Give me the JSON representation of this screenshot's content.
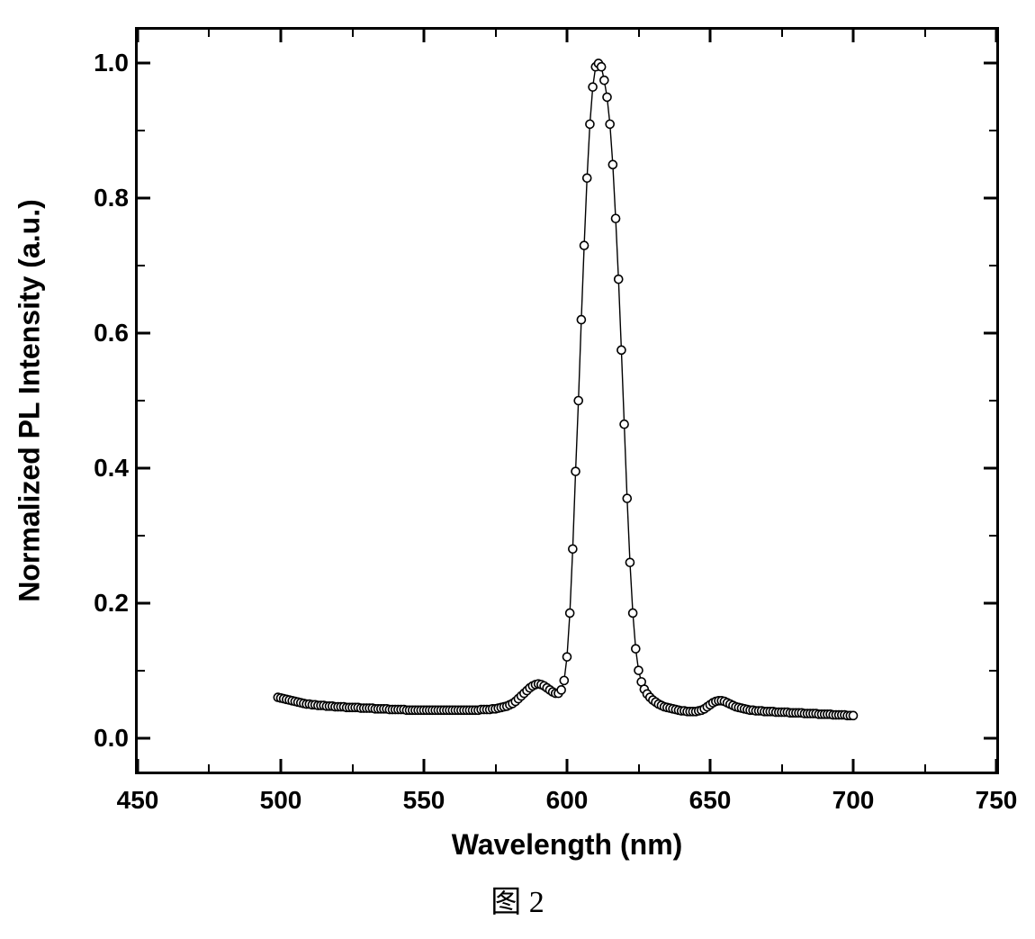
{
  "chart": {
    "type": "scatter-line",
    "xlabel": "Wavelength (nm)",
    "ylabel": "Normalized PL Intensity (a.u.)",
    "xlim": [
      450,
      750
    ],
    "ylim": [
      -0.05,
      1.05
    ],
    "xticks_major": [
      450,
      500,
      550,
      600,
      650,
      700,
      750
    ],
    "xticks_minor": [
      475,
      525,
      575,
      625,
      675,
      725
    ],
    "yticks_major": [
      0.0,
      0.2,
      0.4,
      0.6,
      0.8,
      1.0
    ],
    "yticks_minor": [
      0.1,
      0.3,
      0.5,
      0.7,
      0.9
    ],
    "xtick_labels": [
      "450",
      "500",
      "550",
      "600",
      "650",
      "700",
      "750"
    ],
    "ytick_labels": [
      "0.0",
      "0.2",
      "0.4",
      "0.6",
      "0.8",
      "1.0"
    ],
    "background_color": "#ffffff",
    "axis_color": "#000000",
    "tick_length_major": 14,
    "tick_length_minor": 8,
    "axis_line_width": 3,
    "tick_font_size": 28,
    "tick_font_weight": "bold",
    "axis_title_font_size": 32,
    "axis_title_font_weight": "bold",
    "series": {
      "marker": "circle-open",
      "marker_size": 9,
      "marker_edge_color": "#000000",
      "marker_edge_width": 1.6,
      "marker_face_color": "#ffffff",
      "line_color": "#000000",
      "line_width": 1.4,
      "x": [
        499,
        500,
        501,
        502,
        503,
        504,
        505,
        506,
        507,
        508,
        509,
        510,
        511,
        512,
        513,
        514,
        515,
        516,
        517,
        518,
        519,
        520,
        521,
        522,
        523,
        524,
        525,
        526,
        527,
        528,
        529,
        530,
        531,
        532,
        533,
        534,
        535,
        536,
        537,
        538,
        539,
        540,
        541,
        542,
        543,
        544,
        545,
        546,
        547,
        548,
        549,
        550,
        551,
        552,
        553,
        554,
        555,
        556,
        557,
        558,
        559,
        560,
        561,
        562,
        563,
        564,
        565,
        566,
        567,
        568,
        569,
        570,
        571,
        572,
        573,
        574,
        575,
        576,
        577,
        578,
        579,
        580,
        581,
        582,
        583,
        584,
        585,
        586,
        587,
        588,
        589,
        590,
        591,
        592,
        593,
        594,
        595,
        596,
        597,
        598,
        599,
        600,
        601,
        602,
        603,
        604,
        605,
        606,
        607,
        608,
        609,
        610,
        611,
        612,
        613,
        614,
        615,
        616,
        617,
        618,
        619,
        620,
        621,
        622,
        623,
        624,
        625,
        626,
        627,
        628,
        629,
        630,
        631,
        632,
        633,
        634,
        635,
        636,
        637,
        638,
        639,
        640,
        641,
        642,
        643,
        644,
        645,
        646,
        647,
        648,
        649,
        650,
        651,
        652,
        653,
        654,
        655,
        656,
        657,
        658,
        659,
        660,
        661,
        662,
        663,
        664,
        665,
        666,
        667,
        668,
        669,
        670,
        671,
        672,
        673,
        674,
        675,
        676,
        677,
        678,
        679,
        680,
        681,
        682,
        683,
        684,
        685,
        686,
        687,
        688,
        689,
        690,
        691,
        692,
        693,
        694,
        695,
        696,
        697,
        698,
        699,
        700
      ],
      "y": [
        0.06,
        0.059,
        0.058,
        0.057,
        0.056,
        0.055,
        0.054,
        0.053,
        0.052,
        0.051,
        0.05,
        0.05,
        0.049,
        0.049,
        0.048,
        0.048,
        0.048,
        0.047,
        0.047,
        0.047,
        0.046,
        0.046,
        0.046,
        0.046,
        0.045,
        0.045,
        0.045,
        0.045,
        0.045,
        0.044,
        0.044,
        0.044,
        0.044,
        0.044,
        0.043,
        0.043,
        0.043,
        0.043,
        0.043,
        0.042,
        0.042,
        0.042,
        0.042,
        0.042,
        0.042,
        0.041,
        0.041,
        0.041,
        0.041,
        0.041,
        0.041,
        0.041,
        0.041,
        0.041,
        0.041,
        0.041,
        0.041,
        0.041,
        0.041,
        0.041,
        0.041,
        0.041,
        0.041,
        0.041,
        0.041,
        0.041,
        0.041,
        0.041,
        0.041,
        0.041,
        0.041,
        0.042,
        0.042,
        0.042,
        0.042,
        0.043,
        0.043,
        0.044,
        0.045,
        0.046,
        0.047,
        0.049,
        0.051,
        0.054,
        0.058,
        0.062,
        0.066,
        0.07,
        0.074,
        0.077,
        0.079,
        0.08,
        0.079,
        0.077,
        0.074,
        0.071,
        0.068,
        0.066,
        0.066,
        0.071,
        0.085,
        0.12,
        0.185,
        0.28,
        0.395,
        0.5,
        0.62,
        0.73,
        0.83,
        0.91,
        0.965,
        0.995,
        1.0,
        0.995,
        0.975,
        0.95,
        0.91,
        0.85,
        0.77,
        0.68,
        0.575,
        0.465,
        0.355,
        0.26,
        0.185,
        0.132,
        0.1,
        0.083,
        0.072,
        0.065,
        0.06,
        0.056,
        0.053,
        0.05,
        0.048,
        0.046,
        0.045,
        0.044,
        0.043,
        0.042,
        0.041,
        0.04,
        0.04,
        0.039,
        0.039,
        0.039,
        0.039,
        0.04,
        0.041,
        0.043,
        0.046,
        0.049,
        0.052,
        0.054,
        0.055,
        0.055,
        0.054,
        0.052,
        0.05,
        0.048,
        0.046,
        0.045,
        0.044,
        0.043,
        0.042,
        0.041,
        0.041,
        0.04,
        0.04,
        0.04,
        0.039,
        0.039,
        0.039,
        0.039,
        0.038,
        0.038,
        0.038,
        0.038,
        0.038,
        0.037,
        0.037,
        0.037,
        0.037,
        0.037,
        0.036,
        0.036,
        0.036,
        0.036,
        0.036,
        0.035,
        0.035,
        0.035,
        0.035,
        0.035,
        0.034,
        0.034,
        0.034,
        0.034,
        0.034,
        0.033,
        0.033,
        0.033
      ]
    }
  },
  "caption": "图 2"
}
